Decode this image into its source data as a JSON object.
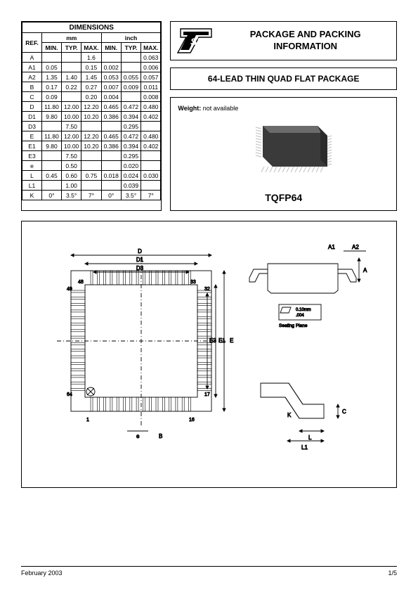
{
  "table": {
    "title": "DIMENSIONS",
    "ref_header": "REF.",
    "unit_groups": [
      "mm",
      "inch"
    ],
    "sub_headers": [
      "MIN.",
      "TYP.",
      "MAX.",
      "MIN.",
      "TYP.",
      "MAX."
    ],
    "rows": [
      {
        "ref": "A",
        "c": [
          "",
          "",
          "1.6",
          "",
          "",
          "0.063"
        ]
      },
      {
        "ref": "A1",
        "c": [
          "0.05",
          "",
          "0.15",
          "0.002",
          "",
          "0.006"
        ]
      },
      {
        "ref": "A2",
        "c": [
          "1.35",
          "1.40",
          "1.45",
          "0.053",
          "0.055",
          "0.057"
        ]
      },
      {
        "ref": "B",
        "c": [
          "0.17",
          "0.22",
          "0.27",
          "0.007",
          "0.009",
          "0.011"
        ]
      },
      {
        "ref": "C",
        "c": [
          "0.09",
          "",
          "0.20",
          "0.004",
          "",
          "0.008"
        ]
      },
      {
        "ref": "D",
        "c": [
          "11.80",
          "12.00",
          "12.20",
          "0.465",
          "0.472",
          "0.480"
        ]
      },
      {
        "ref": "D1",
        "c": [
          "9.80",
          "10.00",
          "10.20",
          "0.386",
          "0.394",
          "0.402"
        ]
      },
      {
        "ref": "D3",
        "c": [
          "",
          "7.50",
          "",
          "",
          "0.295",
          ""
        ]
      },
      {
        "ref": "E",
        "c": [
          "11.80",
          "12.00",
          "12.20",
          "0.465",
          "0.472",
          "0.480"
        ]
      },
      {
        "ref": "E1",
        "c": [
          "9.80",
          "10.00",
          "10.20",
          "0.386",
          "0.394",
          "0.402"
        ]
      },
      {
        "ref": "E3",
        "c": [
          "",
          "7.50",
          "",
          "",
          "0.295",
          ""
        ]
      },
      {
        "ref": "e",
        "c": [
          "",
          "0.50",
          "",
          "",
          "0.020",
          ""
        ]
      },
      {
        "ref": "L",
        "c": [
          "0.45",
          "0.60",
          "0.75",
          "0.018",
          "0.024",
          "0.030"
        ]
      },
      {
        "ref": "L1",
        "c": [
          "",
          "1.00",
          "",
          "",
          "0.039",
          ""
        ]
      },
      {
        "ref": "K",
        "c": [
          "0°",
          "3.5°",
          "7°",
          "0°",
          "3.5°",
          "7°"
        ]
      }
    ]
  },
  "header": {
    "text": "PACKAGE AND PACKING INFORMATION"
  },
  "title_box": "64-LEAD THIN QUAD FLAT PACKAGE",
  "info": {
    "weight_label": "Weight:",
    "weight_value": "not available",
    "chip_label": "TQFP64"
  },
  "diagram": {
    "labels": {
      "D": "D",
      "D1": "D1",
      "D3": "D3",
      "E": "E",
      "E1": "E1",
      "E3": "E3",
      "A": "A",
      "A1": "A1",
      "A2": "A2",
      "L": "L",
      "L1": "L1",
      "K": "K",
      "B": "B",
      "C": "C",
      "e": "e"
    },
    "pins": {
      "p1": "1",
      "p16": "16",
      "p17": "17",
      "p32": "32",
      "p33": "33",
      "p48": "48",
      "p49": "49",
      "p64": "64"
    },
    "seating": {
      "tol": "0.10mm",
      "inch": ".004",
      "label": "Seating Plane"
    }
  },
  "footer": {
    "date": "February 2003",
    "page": "1/5"
  },
  "colors": {
    "border": "#000000",
    "bg": "#ffffff",
    "chip_dark": "#3a3a3a",
    "chip_mid": "#6b6b6b",
    "chip_light": "#c8c8c8",
    "line": "#000000",
    "thin": "#555555"
  }
}
